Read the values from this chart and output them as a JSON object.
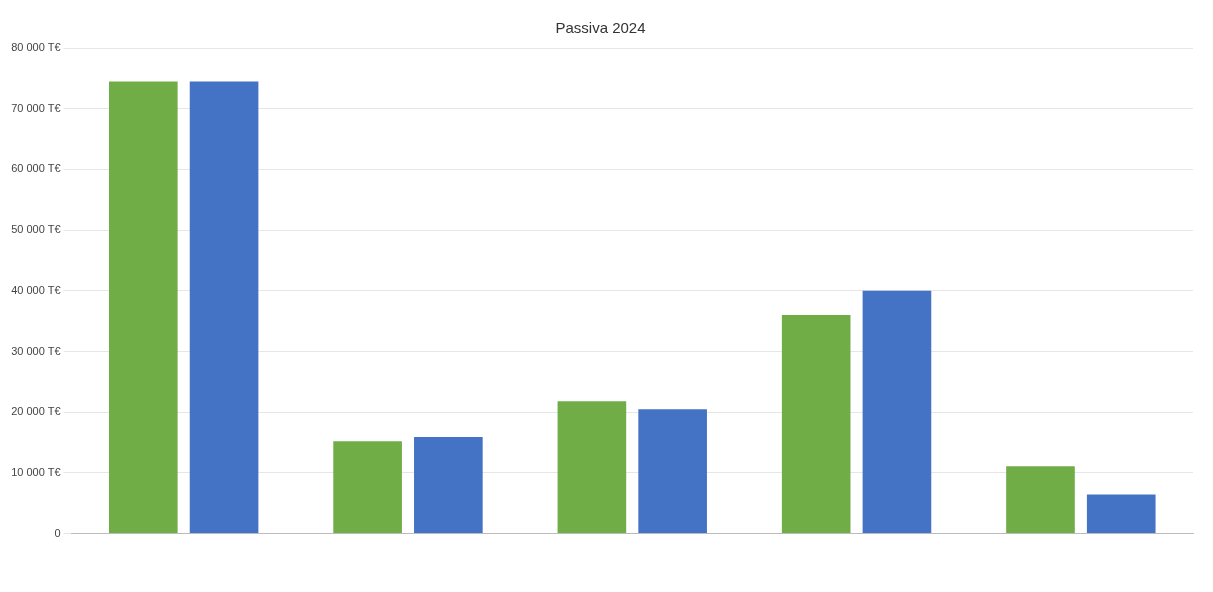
{
  "chart_data": {
    "type": "bar",
    "title": "Passiva 2024",
    "categories": [
      null,
      null,
      null,
      null,
      null
    ],
    "series": [
      {
        "color": "#70ad47",
        "values": [
          74500,
          15200,
          21800,
          36000,
          11100
        ]
      },
      {
        "color": "#4472c4",
        "values": [
          74500,
          15900,
          20500,
          40000,
          6450
        ]
      }
    ],
    "ylim": [
      0,
      80000
    ],
    "yticks": [
      {
        "value": 0,
        "label": "0"
      },
      {
        "value": 10000,
        "label": "10 000 T€"
      },
      {
        "value": 20000,
        "label": "20 000 T€"
      },
      {
        "value": 30000,
        "label": "30 000 T€"
      },
      {
        "value": 40000,
        "label": "40 000 T€"
      },
      {
        "value": 50000,
        "label": "50 000 T€"
      },
      {
        "value": 60000,
        "label": "60 000 T€"
      },
      {
        "value": 70000,
        "label": "70 000 T€"
      },
      {
        "value": 80000,
        "label": "80 000 T€"
      }
    ],
    "grid": "y"
  }
}
